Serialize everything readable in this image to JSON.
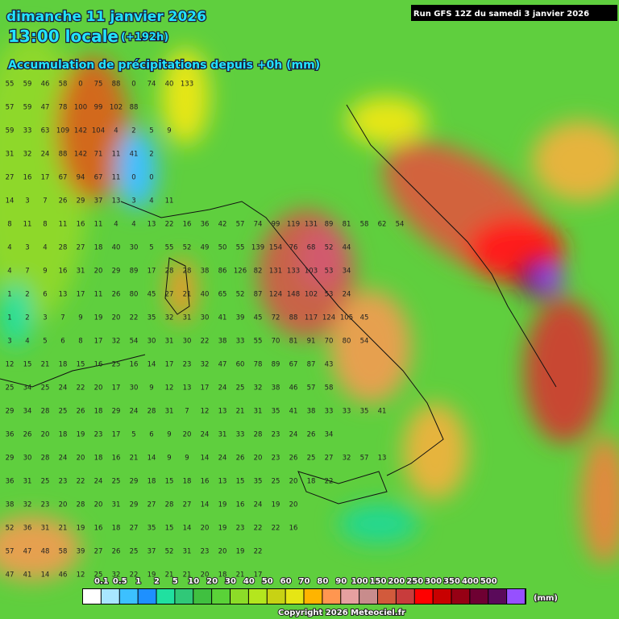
{
  "header": {
    "date": "dimanche 11 janvier 2026",
    "time": "13:00 locale",
    "offset": "(+192h)",
    "subtitle": "Accumulation de précipitations depuis +0h (mm)",
    "run": "Run GFS 12Z du samedi 3 janvier 2026"
  },
  "grid": [
    [
      55,
      59,
      46,
      58,
      0,
      75,
      88,
      0,
      74,
      40,
      133
    ],
    [
      57,
      59,
      47,
      78,
      100,
      99,
      102,
      88
    ],
    [
      59,
      33,
      63,
      109,
      142,
      104,
      4,
      2,
      5,
      9
    ],
    [
      31,
      32,
      24,
      88,
      142,
      71,
      11,
      41,
      2
    ],
    [
      27,
      16,
      17,
      67,
      94,
      67,
      11,
      0,
      0
    ],
    [
      14,
      3,
      7,
      26,
      29,
      37,
      13,
      3,
      4,
      11
    ],
    [
      8,
      11,
      8,
      11,
      16,
      11,
      4,
      4,
      13,
      22,
      16,
      36,
      42,
      57,
      74,
      99,
      119,
      131,
      89,
      81,
      58,
      62,
      54
    ],
    [
      4,
      3,
      4,
      28,
      27,
      18,
      40,
      30,
      5,
      55,
      52,
      49,
      50,
      55,
      139,
      154,
      76,
      68,
      52,
      44
    ],
    [
      4,
      7,
      9,
      16,
      31,
      20,
      29,
      89,
      17,
      28,
      28,
      38,
      86,
      126,
      82,
      131,
      133,
      103,
      53,
      34
    ],
    [
      1,
      2,
      6,
      13,
      17,
      11,
      26,
      80,
      45,
      27,
      21,
      40,
      65,
      52,
      87,
      124,
      148,
      102,
      53,
      24
    ],
    [
      1,
      2,
      3,
      7,
      9,
      19,
      20,
      22,
      35,
      32,
      31,
      30,
      41,
      39,
      45,
      72,
      88,
      117,
      124,
      105,
      45
    ],
    [
      3,
      4,
      5,
      6,
      8,
      17,
      32,
      54,
      30,
      31,
      30,
      22,
      38,
      33,
      55,
      70,
      81,
      91,
      70,
      80,
      54
    ],
    [
      12,
      15,
      21,
      18,
      15,
      16,
      25,
      16,
      14,
      17,
      23,
      32,
      47,
      60,
      78,
      89,
      67,
      87,
      43
    ],
    [
      25,
      34,
      25,
      24,
      22,
      20,
      17,
      30,
      9,
      12,
      13,
      17,
      24,
      25,
      32,
      38,
      46,
      57,
      58
    ],
    [
      29,
      34,
      28,
      25,
      26,
      18,
      29,
      24,
      28,
      31,
      7,
      12,
      13,
      21,
      31,
      35,
      41,
      38,
      33,
      33,
      35,
      41
    ],
    [
      36,
      26,
      20,
      18,
      19,
      23,
      17,
      5,
      6,
      9,
      20,
      24,
      31,
      33,
      28,
      23,
      24,
      26,
      34
    ],
    [
      29,
      30,
      28,
      24,
      20,
      18,
      16,
      21,
      14,
      9,
      9,
      14,
      24,
      26,
      20,
      23,
      26,
      25,
      27,
      32,
      57,
      13
    ],
    [
      36,
      31,
      25,
      23,
      22,
      24,
      25,
      29,
      18,
      15,
      18,
      16,
      13,
      15,
      35,
      25,
      20,
      18,
      22
    ],
    [
      38,
      32,
      23,
      20,
      28,
      20,
      31,
      29,
      27,
      28,
      27,
      14,
      19,
      16,
      24,
      19,
      20
    ],
    [
      52,
      36,
      31,
      21,
      19,
      16,
      18,
      27,
      35,
      15,
      14,
      20,
      19,
      23,
      22,
      22,
      16
    ],
    [
      57,
      47,
      48,
      58,
      39,
      27,
      26,
      25,
      37,
      52,
      31,
      23,
      20,
      19,
      22
    ],
    [
      47,
      41,
      14,
      46,
      12,
      25,
      32,
      22,
      19,
      21,
      21,
      20,
      18,
      21,
      17
    ]
  ],
  "legend": {
    "labels": [
      "0.1",
      "0.5",
      "1",
      "2",
      "5",
      "10",
      "20",
      "30",
      "40",
      "50",
      "60",
      "70",
      "80",
      "90",
      "100",
      "150",
      "200",
      "250",
      "300",
      "350",
      "400",
      "500"
    ],
    "colors": [
      "#ffffff",
      "#a8e6ff",
      "#3cc0ff",
      "#1e90ff",
      "#20e0a0",
      "#30c878",
      "#40c040",
      "#5ad238",
      "#8cdc28",
      "#b4e61e",
      "#c8d214",
      "#e6e614",
      "#ffb400",
      "#ff9650",
      "#e6a0a0",
      "#c88c8c",
      "#d25a3c",
      "#c83c3c",
      "#ff0000",
      "#c80000",
      "#960014",
      "#6e0032",
      "#5a0a5a",
      "#9650ff"
    ],
    "unit": "(mm)"
  },
  "footer": "Copyright 2026 Meteociel.fr"
}
